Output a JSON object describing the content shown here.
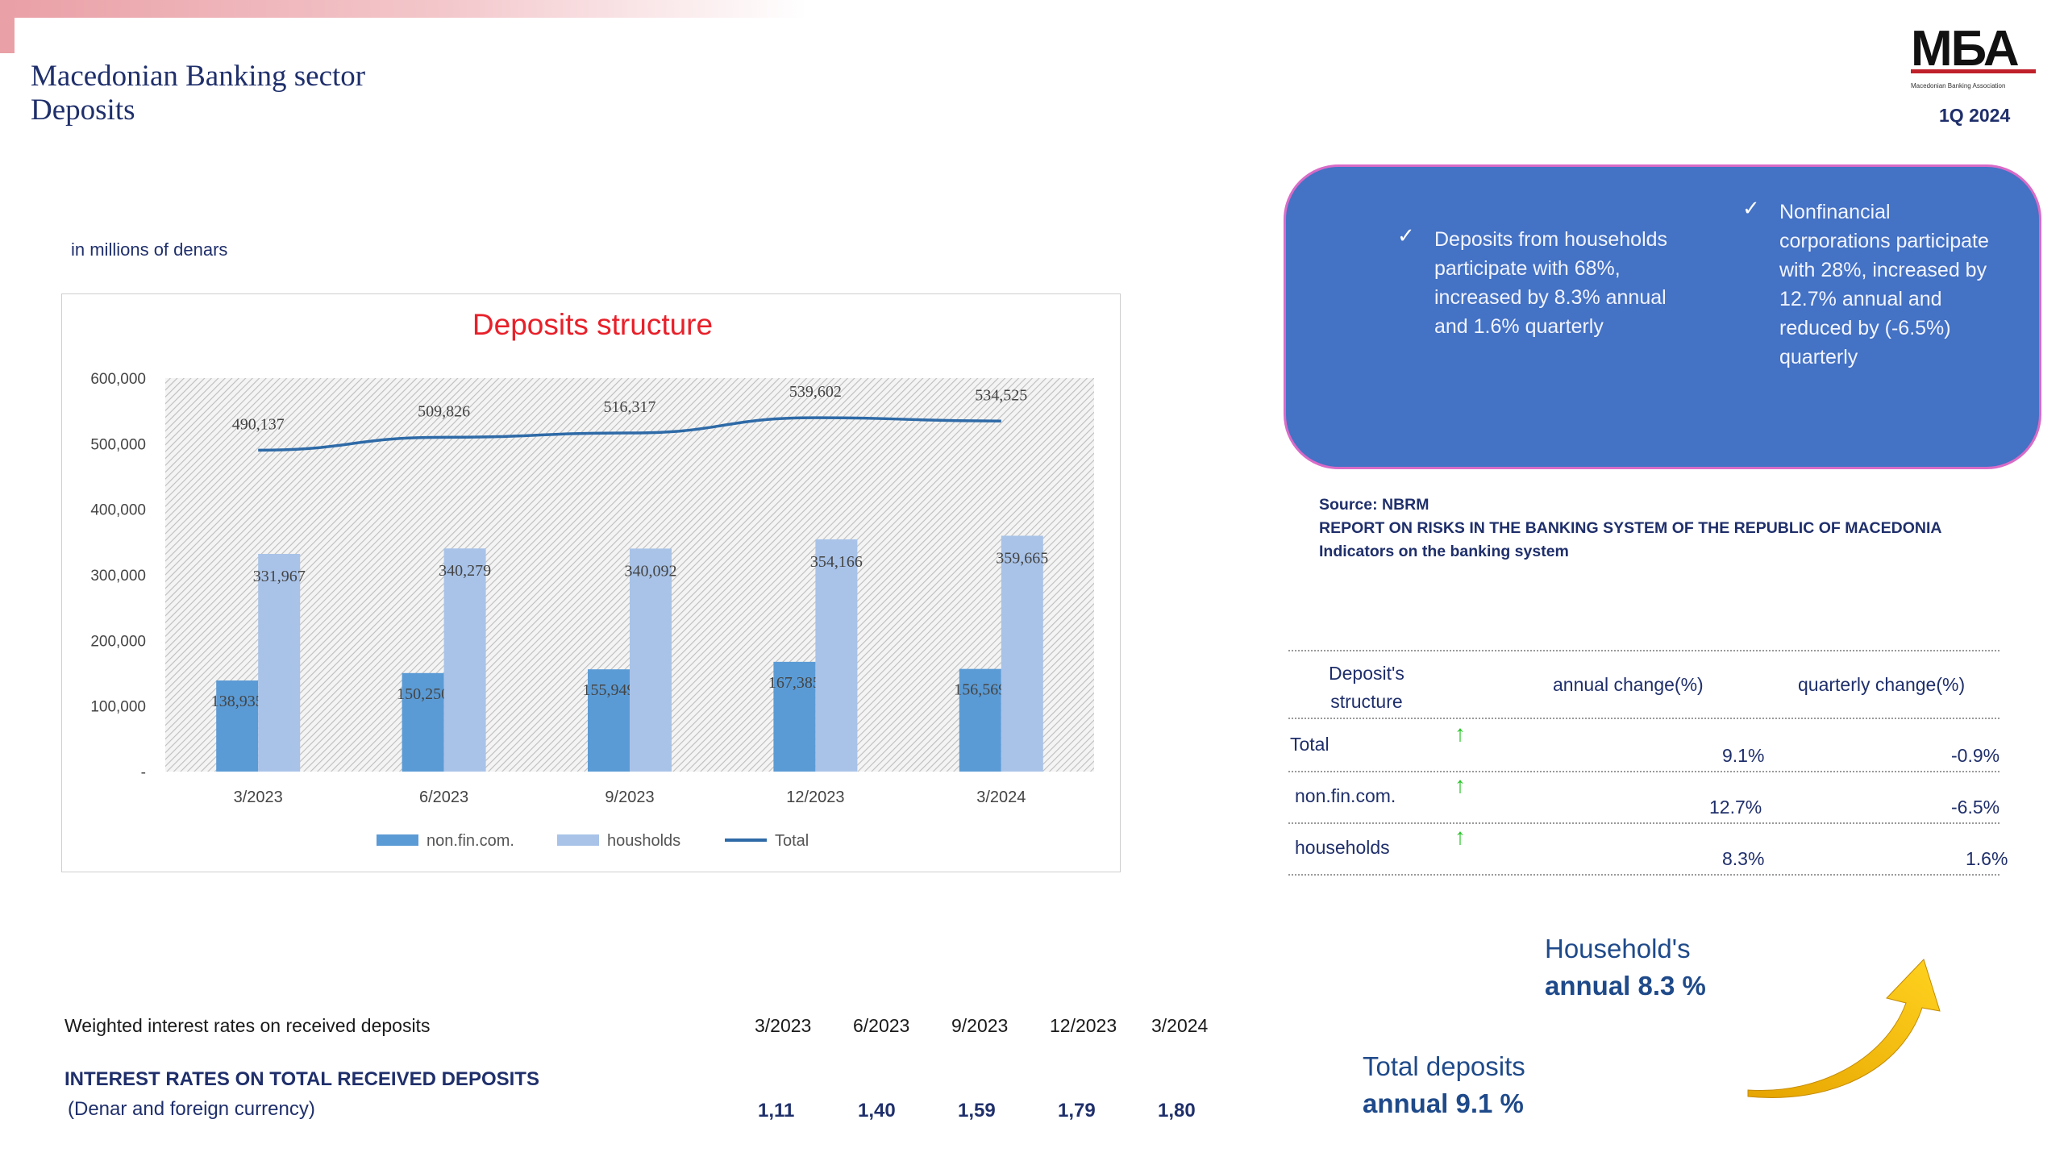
{
  "header": {
    "title_line1": "Macedonian Banking sector",
    "title_line2": "Deposits",
    "logo_text": "MБА",
    "logo_subtitle": "Macedonian Banking Association",
    "period": "1Q 2024"
  },
  "units_note": "in millions of denars",
  "chart_data": {
    "type": "bar",
    "title": "Deposits structure",
    "categories": [
      "3/2023",
      "6/2023",
      "9/2023",
      "12/2023",
      "3/2024"
    ],
    "series": [
      {
        "name": "non.fin.com.",
        "type": "bar",
        "values": [
          138935,
          150250,
          155949,
          167385,
          156569
        ],
        "labels": [
          "138,935",
          "150,250",
          "155,949",
          "167,385",
          "156,569"
        ],
        "color": "#5b9bd5"
      },
      {
        "name": "housholds",
        "type": "bar",
        "values": [
          331967,
          340279,
          340092,
          354166,
          359665
        ],
        "labels": [
          "331,967",
          "340,279",
          "340,092",
          "354,166",
          "359,665"
        ],
        "color": "#a9c3e8"
      },
      {
        "name": "Total",
        "type": "line",
        "values": [
          490137,
          509826,
          516317,
          539602,
          534525
        ],
        "labels": [
          "490,137",
          "509,826",
          "516,317",
          "539,602",
          "534,525"
        ],
        "color": "#2e6aa7"
      }
    ],
    "ylim": [
      0,
      600000
    ],
    "yticks": [
      "-",
      "100,000",
      "200,000",
      "300,000",
      "400,000",
      "500,000",
      "600,000"
    ],
    "title_color": "#e8202a",
    "legend_position": "bottom",
    "grid": false
  },
  "callout": {
    "item1": "Deposits from households participate with 68%, increased by 8.3% annual and 1.6% quarterly",
    "item2": "Nonfinancial corporations participate with 28%, increased  by 12.7% annual  and  reduced by (-6.5%) quarterly",
    "check": "✓"
  },
  "source": {
    "line1": "Source: NBRM",
    "line2": "REPORT ON RISKS IN THE BANKING SYSTEM OF THE REPUBLIC OF MACEDONIA",
    "line3": "Indicators on the banking system"
  },
  "change_table": {
    "header_structure_1": "Deposit's",
    "header_structure_2": "structure",
    "header_annual": "annual change(%)",
    "header_quarterly": "quarterly change(%)",
    "rows": [
      {
        "label": "Total",
        "annual": "9.1%",
        "quarterly": "-0.9%"
      },
      {
        "label": "non.fin.com.",
        "annual": "12.7%",
        "quarterly": "-6.5%"
      },
      {
        "label": "households",
        "annual": "8.3%",
        "quarterly": "1.6%"
      }
    ],
    "arrow": "↑"
  },
  "highlights": {
    "household_label": "Household's",
    "household_value": "annual 8.3 %",
    "total_label": "Total deposits",
    "total_value": "annual 9.1 %"
  },
  "interest_rates": {
    "caption": "Weighted interest rates on received deposits",
    "periods": [
      "3/2023",
      "6/2023",
      "9/2023",
      "12/2023",
      "3/2024"
    ],
    "row_title": "INTEREST RATES ON TOTAL RECEIVED DEPOSITS",
    "row_subtitle": "(Denar and foreign currency)",
    "values": [
      "1,11",
      "1,40",
      "1,59",
      "1,79",
      "1,80"
    ]
  }
}
